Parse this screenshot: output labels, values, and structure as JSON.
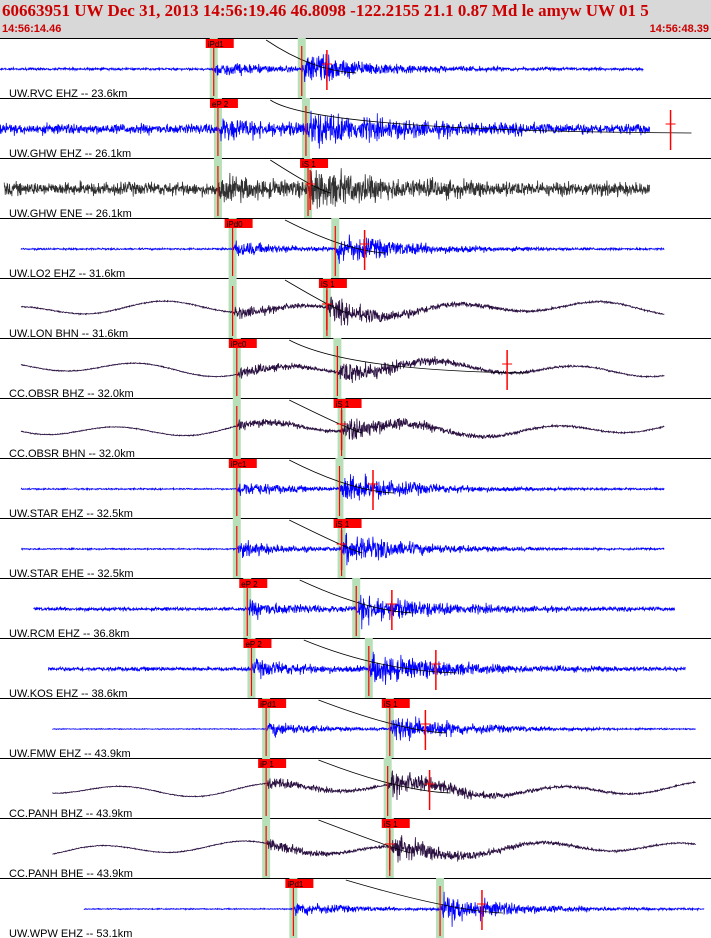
{
  "header": {
    "title": "60663951 UW Dec 31, 2013 14:56:19.46   46.8098 -122.2155 21.1 0.87 Md le amyw UW 01   5",
    "time_start": "14:56:14.46",
    "time_end": "14:56:48.39"
  },
  "colors": {
    "header_bg": "#d8d8d8",
    "header_text": "#cc0000",
    "trace_blue": "#0000ff",
    "trace_dark": "#2a1040",
    "trace_gray": "#303030",
    "pick": "#ff0000",
    "pick_window": "#b8e0b8",
    "coda": "#000000"
  },
  "chart_data": {
    "type": "line",
    "time_range": [
      "14:56:14.46",
      "14:56:48.39"
    ],
    "duration_s": 33.93,
    "traces": [
      {
        "label": "UW.RVC EHZ -- 23.6km",
        "color": "blue",
        "style": "hf",
        "data_start_s": 0.0,
        "data_end_s": 30.7,
        "p_pick": {
          "label": "iPd1",
          "t": 10.2
        },
        "s_pick": {
          "label": "",
          "t": 14.4
        },
        "amp_pick_s": 15.6,
        "coda_end_s": 16.0,
        "noise": 0.08
      },
      {
        "label": "UW.GHW EHZ -- 26.1km",
        "color": "blue",
        "style": "hf",
        "data_start_s": 0.0,
        "data_end_s": 31.0,
        "p_pick": {
          "label": "eP 2",
          "t": 10.4
        },
        "s_pick": {
          "label": "",
          "t": 14.6
        },
        "amp_pick_s": 32.0,
        "coda_end_s": 32.0,
        "noise": 0.35
      },
      {
        "label": "UW.GHW ENE -- 26.1km",
        "color": "gray",
        "style": "hf",
        "data_start_s": 0.2,
        "data_end_s": 31.0,
        "p_pick": {
          "label": "",
          "t": 10.4
        },
        "s_pick": {
          "label": "iS 1",
          "t": 14.7
        },
        "amp_pick_s": 14.8,
        "coda_end_s": 14.8,
        "noise": 0.45
      },
      {
        "label": "UW.LO2 EHZ -- 31.6km",
        "color": "blue",
        "style": "hf",
        "data_start_s": 1.0,
        "data_end_s": 31.7,
        "p_pick": {
          "label": "iPd0",
          "t": 11.1
        },
        "s_pick": {
          "label": "",
          "t": 16.0
        },
        "amp_pick_s": 17.4,
        "coda_end_s": 17.4,
        "noise": 0.06
      },
      {
        "label": "UW.LON BHN -- 31.6km",
        "color": "dark",
        "style": "lp",
        "data_start_s": 1.0,
        "data_end_s": 31.7,
        "p_pick": {
          "label": "",
          "t": 11.1
        },
        "s_pick": {
          "label": "iS 1",
          "t": 15.6
        },
        "amp_pick_s": 15.6,
        "coda_end_s": 15.6,
        "noise": 0.05
      },
      {
        "label": "CC.OBSR BHZ -- 32.0km",
        "color": "dark",
        "style": "lp",
        "data_start_s": 1.0,
        "data_end_s": 31.7,
        "p_pick": {
          "label": "iPc0",
          "t": 11.3
        },
        "s_pick": {
          "label": "",
          "t": 16.1
        },
        "amp_pick_s": 24.2,
        "coda_end_s": 24.2,
        "noise": 0.04
      },
      {
        "label": "CC.OBSR BHN -- 32.0km",
        "color": "dark",
        "style": "lp",
        "data_start_s": 1.0,
        "data_end_s": 31.7,
        "p_pick": {
          "label": "",
          "t": 11.3
        },
        "s_pick": {
          "label": "iS 1",
          "t": 16.3
        },
        "amp_pick_s": 16.3,
        "coda_end_s": 16.3,
        "noise": 0.04
      },
      {
        "label": "UW.STAR EHZ -- 32.5km",
        "color": "blue",
        "style": "hf",
        "data_start_s": 1.0,
        "data_end_s": 31.7,
        "p_pick": {
          "label": "iPc1",
          "t": 11.3
        },
        "s_pick": {
          "label": "",
          "t": 16.2
        },
        "amp_pick_s": 17.8,
        "coda_end_s": 17.8,
        "noise": 0.05
      },
      {
        "label": "UW.STAR EHE -- 32.5km",
        "color": "blue",
        "style": "hf",
        "data_start_s": 1.0,
        "data_end_s": 31.7,
        "p_pick": {
          "label": "",
          "t": 11.3
        },
        "s_pick": {
          "label": "iS 1",
          "t": 16.3
        },
        "amp_pick_s": 16.3,
        "coda_end_s": 16.3,
        "noise": 0.05
      },
      {
        "label": "UW.RCM EHZ -- 36.8km",
        "color": "blue",
        "style": "hf",
        "data_start_s": 1.6,
        "data_end_s": 32.2,
        "p_pick": {
          "label": "eP 2",
          "t": 11.8
        },
        "s_pick": {
          "label": "",
          "t": 17.0
        },
        "amp_pick_s": 18.7,
        "coda_end_s": 18.7,
        "noise": 0.12
      },
      {
        "label": "UW.KOS EHZ -- 38.6km",
        "color": "blue",
        "style": "hf",
        "data_start_s": 2.3,
        "data_end_s": 32.7,
        "p_pick": {
          "label": "eP 2",
          "t": 12.0
        },
        "s_pick": {
          "label": "",
          "t": 17.6
        },
        "amp_pick_s": 20.8,
        "coda_end_s": 20.8,
        "noise": 0.14
      },
      {
        "label": "UW.FMW EHZ -- 43.9km",
        "color": "blue",
        "style": "hf",
        "data_start_s": 2.5,
        "data_end_s": 33.2,
        "p_pick": {
          "label": "iPd1",
          "t": 12.7
        },
        "s_pick": {
          "label": "iS 1",
          "t": 18.6
        },
        "amp_pick_s": 20.3,
        "coda_end_s": 20.3,
        "noise": 0.03
      },
      {
        "label": "CC.PANH BHZ -- 43.9km",
        "color": "dark",
        "style": "lp",
        "data_start_s": 2.5,
        "data_end_s": 33.2,
        "p_pick": {
          "label": "iP 1",
          "t": 12.7
        },
        "s_pick": {
          "label": "",
          "t": 18.5
        },
        "amp_pick_s": 20.5,
        "coda_end_s": 20.5,
        "noise": 0.04
      },
      {
        "label": "CC.PANH BHE -- 43.9km",
        "color": "dark",
        "style": "lp",
        "data_start_s": 2.5,
        "data_end_s": 33.2,
        "p_pick": {
          "label": "",
          "t": 12.7
        },
        "s_pick": {
          "label": "iS 1",
          "t": 18.6
        },
        "amp_pick_s": 18.6,
        "coda_end_s": 18.6,
        "noise": 0.04
      },
      {
        "label": "UW.WPW EHZ -- 53.1km",
        "color": "blue",
        "style": "hf",
        "data_start_s": 4.0,
        "data_end_s": 33.6,
        "p_pick": {
          "label": "iPd1",
          "t": 14.0
        },
        "s_pick": {
          "label": "",
          "t": 21.0
        },
        "amp_pick_s": 23.0,
        "coda_end_s": 23.0,
        "noise": 0.04
      }
    ]
  }
}
